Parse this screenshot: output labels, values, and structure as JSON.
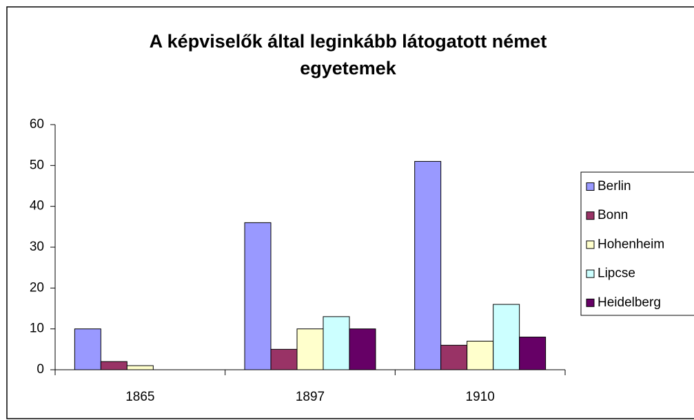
{
  "chart_data": {
    "type": "bar",
    "title": [
      "A képviselők által leginkább látogatott német",
      "egyetemek"
    ],
    "categories": [
      "1865",
      "1897",
      "1910"
    ],
    "series": [
      {
        "name": "Berlin",
        "color": "#9999ff",
        "values": [
          10,
          36,
          51
        ]
      },
      {
        "name": "Bonn",
        "color": "#993366",
        "values": [
          2,
          5,
          6
        ]
      },
      {
        "name": "Hohenheim",
        "color": "#ffffcc",
        "values": [
          1,
          10,
          7
        ]
      },
      {
        "name": "Lipcse",
        "color": "#ccffff",
        "values": [
          0,
          13,
          16
        ]
      },
      {
        "name": "Heidelberg",
        "color": "#660066",
        "values": [
          0,
          10,
          8
        ]
      }
    ],
    "ylim": [
      0,
      60
    ],
    "yticks": [
      0,
      10,
      20,
      30,
      40,
      50,
      60
    ],
    "grid": false,
    "legend": "right"
  }
}
